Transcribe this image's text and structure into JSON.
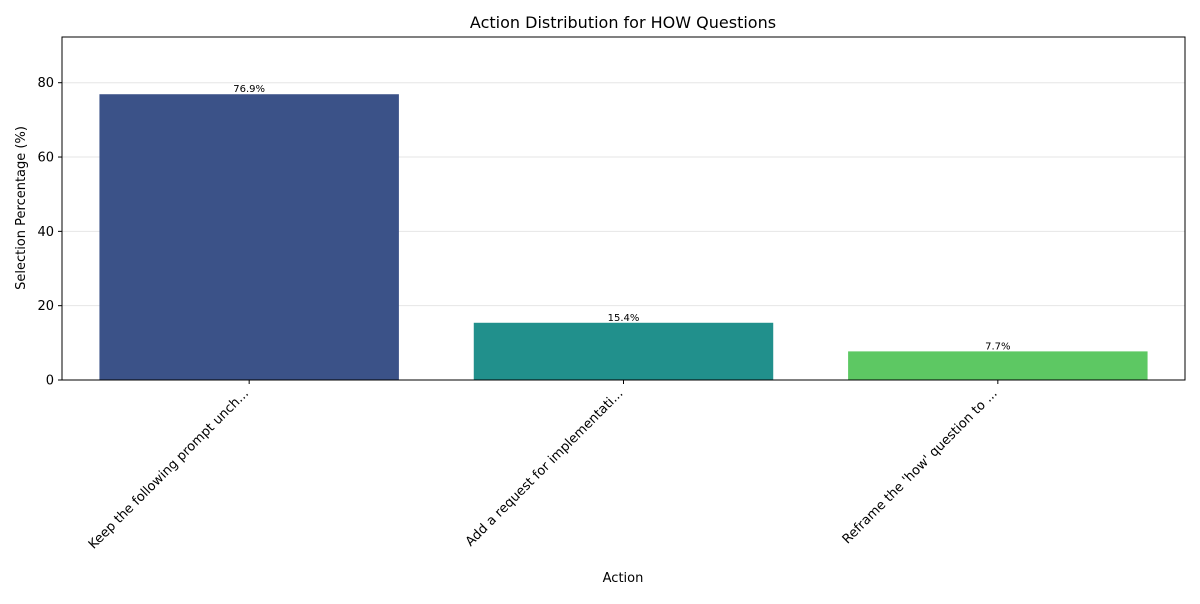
{
  "chart_data": {
    "type": "bar",
    "title": "Action Distribution for HOW Questions",
    "xlabel": "Action",
    "ylabel": "Selection Percentage (%)",
    "categories": [
      "Keep the following prompt unch...",
      "Add a request for implementati...",
      "Reframe the 'how' question to ..."
    ],
    "values": [
      76.9,
      15.4,
      7.7
    ],
    "data_labels": [
      "76.9%",
      "15.4%",
      "7.7%"
    ],
    "colors": [
      "#3b5288",
      "#21908c",
      "#5dc863"
    ],
    "ylim": [
      0,
      92.3
    ],
    "yticks": [
      0,
      20,
      40,
      60,
      80
    ],
    "ytick_labels": [
      "0",
      "20",
      "40",
      "60",
      "80"
    ],
    "grid": "y",
    "legend": "none"
  }
}
